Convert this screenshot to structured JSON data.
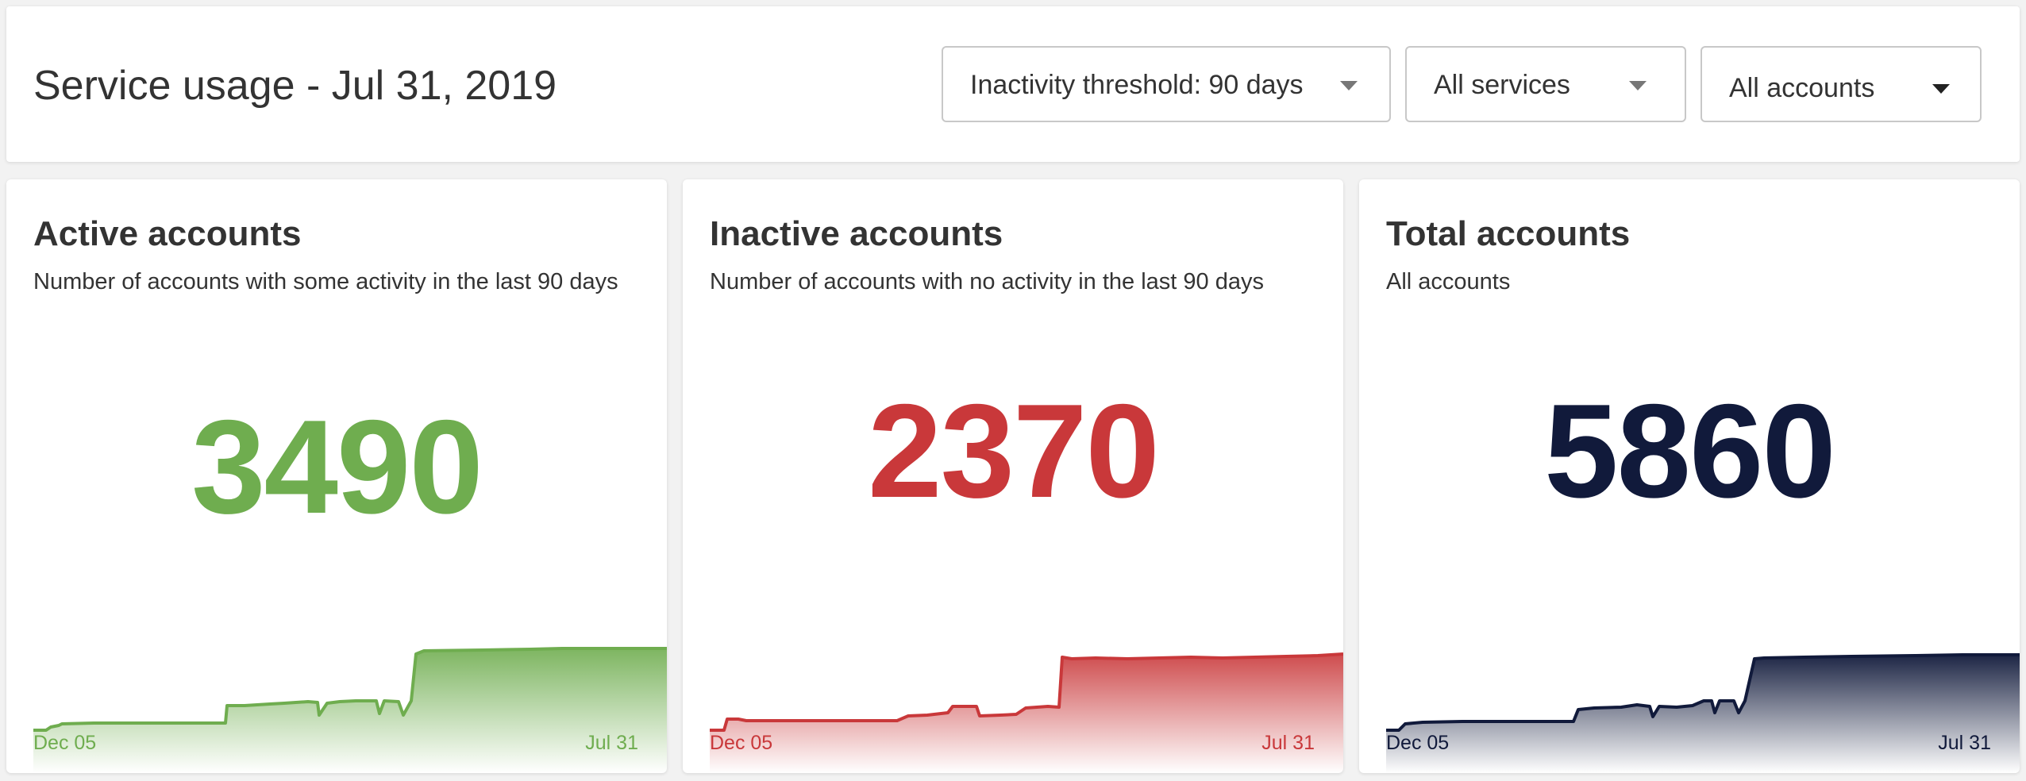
{
  "header": {
    "title": "Service usage - Jul 31, 2019",
    "filters": {
      "threshold": "Inactivity threshold: 90 days",
      "services": "All services",
      "accounts": "All accounts"
    }
  },
  "cards": [
    {
      "id": "active",
      "title": "Active accounts",
      "description": "Number of accounts with some activity in the last 90 days",
      "value": "3490",
      "color": "#6fad4f",
      "date_start": "Dec 05",
      "date_end": "Jul 31"
    },
    {
      "id": "inactive",
      "title": "Inactive accounts",
      "description": "Number of accounts with no activity in the last 90 days",
      "value": "2370",
      "color": "#c9383a",
      "date_start": "Dec 05",
      "date_end": "Jul 31"
    },
    {
      "id": "total",
      "title": "Total accounts",
      "description": "All accounts",
      "value": "5860",
      "color": "#111a3b",
      "date_start": "Dec 05",
      "date_end": "Jul 31"
    }
  ]
}
